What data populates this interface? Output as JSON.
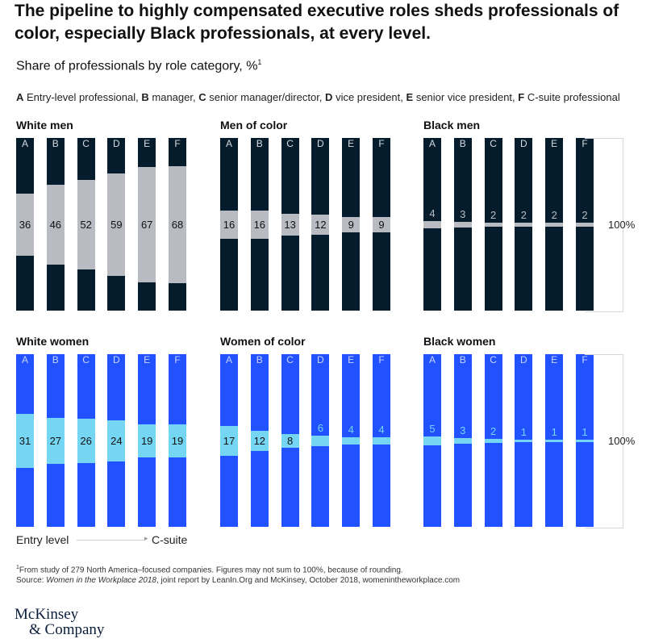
{
  "title": "The pipeline to highly compensated executive roles sheds professionals of color, especially Black professionals, at every level.",
  "subtitle": "Share of professionals by role category, %",
  "subtitle_footnote_marker": "1",
  "legend": [
    {
      "key": "A",
      "text": "Entry-level professional,"
    },
    {
      "key": "B",
      "text": "manager,"
    },
    {
      "key": "C",
      "text": "senior manager/director,"
    },
    {
      "key": "D",
      "text": "vice president,"
    },
    {
      "key": "E",
      "text": "senior vice president,"
    },
    {
      "key": "F",
      "text": "C-suite professional"
    }
  ],
  "scale_label": "100%",
  "axis": {
    "start": "Entry level",
    "end": "C-suite"
  },
  "footnote": {
    "marker": "1",
    "line1": "From study of 279 North America–focused companies. Figures may not sum to 100%, because of rounding.",
    "source_prefix": "Source: ",
    "source_title": "Women in the Workplace 2018",
    "source_rest": ", joint report by LeanIn.Org and McKinsey, October 2018, womenintheworkplace.com"
  },
  "logo": {
    "line1": "McKinsey",
    "line2": "& Company"
  },
  "colors": {
    "men_bar": "#051c2c",
    "men_highlight": "#b8bcc2",
    "women_bar": "#2251ff",
    "women_highlight": "#75d6f4"
  },
  "chart_data": [
    {
      "type": "bar",
      "title": "White men",
      "categories": [
        "A",
        "B",
        "C",
        "D",
        "E",
        "F"
      ],
      "values": [
        36,
        46,
        52,
        59,
        67,
        68
      ],
      "ylim": [
        0,
        100
      ],
      "group": "men"
    },
    {
      "type": "bar",
      "title": "Men of color",
      "categories": [
        "A",
        "B",
        "C",
        "D",
        "E",
        "F"
      ],
      "values": [
        16,
        16,
        13,
        12,
        9,
        9
      ],
      "ylim": [
        0,
        100
      ],
      "group": "men"
    },
    {
      "type": "bar",
      "title": "Black men",
      "categories": [
        "A",
        "B",
        "C",
        "D",
        "E",
        "F"
      ],
      "values": [
        4,
        3,
        2,
        2,
        2,
        2
      ],
      "ylim": [
        0,
        100
      ],
      "group": "men"
    },
    {
      "type": "bar",
      "title": "White women",
      "categories": [
        "A",
        "B",
        "C",
        "D",
        "E",
        "F"
      ],
      "values": [
        31,
        27,
        26,
        24,
        19,
        19
      ],
      "ylim": [
        0,
        100
      ],
      "group": "women"
    },
    {
      "type": "bar",
      "title": "Women of color",
      "categories": [
        "A",
        "B",
        "C",
        "D",
        "E",
        "F"
      ],
      "values": [
        17,
        12,
        8,
        6,
        4,
        4
      ],
      "ylim": [
        0,
        100
      ],
      "group": "women"
    },
    {
      "type": "bar",
      "title": "Black women",
      "categories": [
        "A",
        "B",
        "C",
        "D",
        "E",
        "F"
      ],
      "values": [
        5,
        3,
        2,
        1,
        1,
        1
      ],
      "ylim": [
        0,
        100
      ],
      "group": "women"
    }
  ]
}
